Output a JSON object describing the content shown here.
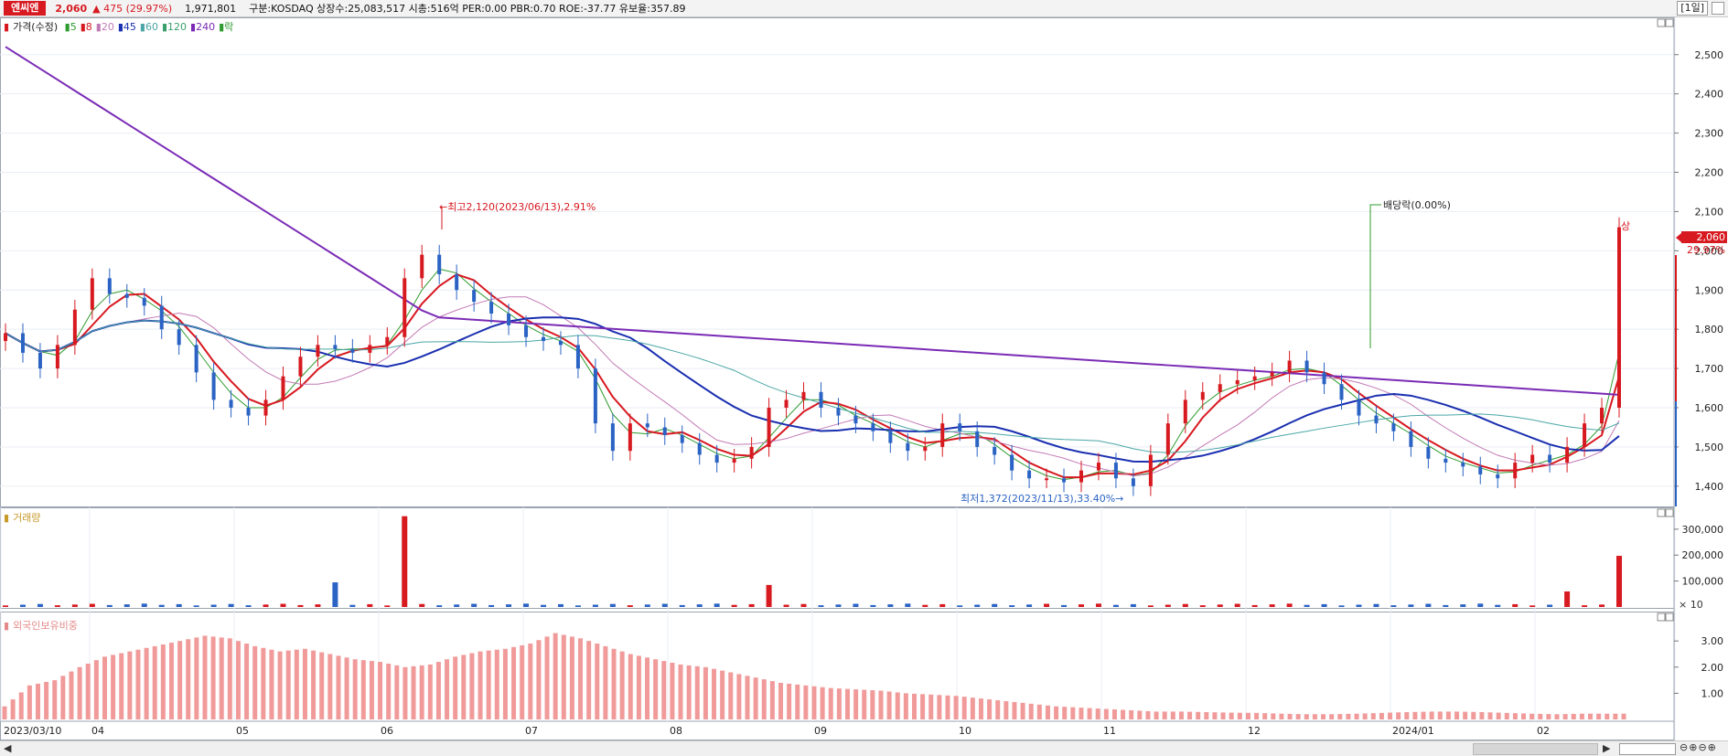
{
  "header": {
    "stock_name": "엔씨엔",
    "price": "2,060",
    "change": "475  (29.97%)",
    "volume": "1,971,801",
    "info": "구분:KOSDAQ 상장수:25,083,517 시총:516억 PER:0.00 PBR:0.70 ROE:-37.77 유보율:357.89",
    "period": "[1일]"
  },
  "price_legend": {
    "title": "가격(수정)",
    "items": [
      {
        "label": "5",
        "color": "#2e9b2e"
      },
      {
        "label": "8",
        "color": "#d71920"
      },
      {
        "label": "20",
        "color": "#c27ab5"
      },
      {
        "label": "45",
        "color": "#1a2fb0"
      },
      {
        "label": "60",
        "color": "#4aa6a6"
      },
      {
        "label": "120",
        "color": "#3aa06e"
      },
      {
        "label": "240",
        "color": "#7a2bb5"
      },
      {
        "label": "락",
        "color": "#2e9b2e"
      }
    ]
  },
  "volume_legend": {
    "title": "거래량"
  },
  "foreign_legend": {
    "title": "외국인보유비중"
  },
  "annotations": {
    "high": "최고2,120(2023/06/13),2.91%",
    "low": "최저1,372(2023/11/13),33.40%",
    "dividend": "배당락(0.00%)",
    "limit_up": "상"
  },
  "last_price_tag": {
    "price": "2,060",
    "pct": "29.97%"
  },
  "colors": {
    "up": "#d71920",
    "down": "#2a63c4",
    "accent": "#d71920"
  },
  "chart_data": {
    "type": "candlestick",
    "price_axis": {
      "min": 1360,
      "max": 2560,
      "ticks": [
        "2,500",
        "2,400",
        "2,300",
        "2,200",
        "2,100",
        "2,000",
        "1,900",
        "1,800",
        "1,700",
        "1,600",
        "1,500",
        "1,400"
      ]
    },
    "volume_axis": {
      "ticks": [
        "300,000",
        "200,000",
        "100,000"
      ],
      "unit": "× 10"
    },
    "foreign_axis": {
      "ticks": [
        "3.00",
        "2.00",
        "1.00"
      ]
    },
    "x_labels": [
      "2023/03/10",
      "04",
      "05",
      "06",
      "07",
      "08",
      "09",
      "10",
      "11",
      "12",
      "2024/01",
      "02"
    ],
    "price_path": [
      1790,
      1740,
      1700,
      1760,
      1850,
      1930,
      1890,
      1880,
      1860,
      1800,
      1760,
      1690,
      1620,
      1600,
      1580,
      1620,
      1680,
      1730,
      1760,
      1750,
      1740,
      1760,
      1780,
      1930,
      1990,
      1940,
      1900,
      1870,
      1840,
      1810,
      1780,
      1770,
      1760,
      1700,
      1560,
      1490,
      1560,
      1550,
      1530,
      1510,
      1480,
      1460,
      1470,
      1500,
      1600,
      1620,
      1640,
      1600,
      1580,
      1560,
      1540,
      1510,
      1490,
      1500,
      1560,
      1540,
      1500,
      1480,
      1440,
      1420,
      1420,
      1410,
      1440,
      1460,
      1420,
      1400,
      1480,
      1560,
      1620,
      1640,
      1660,
      1670,
      1680,
      1690,
      1720,
      1690,
      1660,
      1620,
      1580,
      1560,
      1540,
      1500,
      1470,
      1460,
      1450,
      1430,
      1420,
      1460,
      1480,
      1460,
      1500,
      1560,
      1600,
      2060
    ],
    "volume_spikes": [
      {
        "x": "2023/06/13",
        "value": 350000
      },
      {
        "x": "2023/05/31",
        "value": 95000
      },
      {
        "x": "2023/09/01",
        "value": 85000
      },
      {
        "x": "2024/02/21",
        "value": 60000
      },
      {
        "x": "2024/02/23",
        "value": 197180
      }
    ],
    "foreign_ratio_path": [
      0.5,
      1.3,
      1.5,
      2.0,
      2.4,
      2.6,
      2.8,
      3.0,
      3.2,
      3.1,
      2.8,
      2.6,
      2.7,
      2.5,
      2.3,
      2.2,
      2.0,
      2.1,
      2.4,
      2.6,
      2.7,
      2.9,
      3.3,
      3.1,
      2.8,
      2.5,
      2.3,
      2.1,
      2.0,
      1.8,
      1.6,
      1.4,
      1.3,
      1.2,
      1.15,
      1.1,
      1.0,
      0.95,
      0.9,
      0.8,
      0.7,
      0.6,
      0.5,
      0.45,
      0.4,
      0.35,
      0.3,
      0.3,
      0.28,
      0.26,
      0.25,
      0.22,
      0.2,
      0.2,
      0.22,
      0.25,
      0.28,
      0.3,
      0.3,
      0.28,
      0.25,
      0.22,
      0.2,
      0.22,
      0.22
    ]
  }
}
